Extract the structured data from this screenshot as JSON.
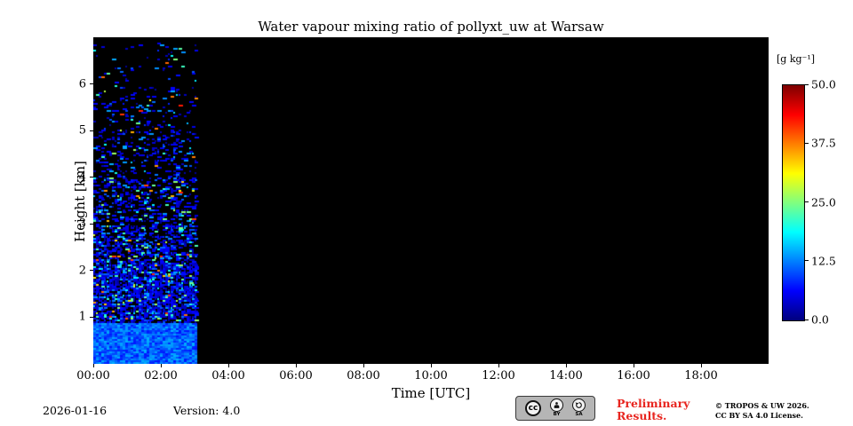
{
  "chart_data": {
    "type": "heatmap",
    "title": "Water vapour mixing ratio of pollyxt_uw at Warsaw",
    "xlabel": "Time [UTC]",
    "ylabel": "Height [km]",
    "colorbar_label": "[g kg⁻¹]",
    "colormap": "jet",
    "plot_background": "#000000",
    "x_range_hours": [
      0,
      20
    ],
    "x_tick_hours": [
      0,
      2,
      4,
      6,
      8,
      10,
      12,
      14,
      16,
      18
    ],
    "x_tick_labels": [
      "00:00",
      "02:00",
      "04:00",
      "06:00",
      "08:00",
      "10:00",
      "12:00",
      "14:00",
      "16:00",
      "18:00"
    ],
    "y_range_km": [
      0,
      7
    ],
    "y_tick_km": [
      1,
      2,
      3,
      4,
      5,
      6
    ],
    "y_tick_labels": [
      "1",
      "2",
      "3",
      "4",
      "5",
      "6"
    ],
    "value_range": [
      0,
      50
    ],
    "colorbar_tick_values": [
      50.0,
      37.5,
      25.0,
      12.5,
      0.0
    ],
    "colorbar_tick_labels": [
      "50.0",
      "37.5",
      "25.0",
      "12.5",
      "0.0"
    ],
    "data_coverage": {
      "start_hour": 0,
      "end_hour": 3.05,
      "max_height_km": 6.9,
      "boundary_layer_top_km": 0.9,
      "description": "Lidar water vapour retrieval only between 00:00 and ~03:00 UTC; solid cyan-blue boundary layer below ~0.9 km (~8-15 g/kg), dense blue/cyan speckle up to ~2.5 km, increasingly sparse blue/green/yellow speckles up to ~6.9 km; rest of the time-height plane has no data (black)."
    },
    "seed": 42
  },
  "footer": {
    "date": "2026-01-16",
    "version": "Version: 4.0",
    "preliminary": "Preliminary\nResults.",
    "copyright": "© TROPOS & UW 2026.\nCC BY SA 4.0 License.",
    "badge": {
      "cc": "cc",
      "by": "BY",
      "sa": "SA"
    }
  }
}
